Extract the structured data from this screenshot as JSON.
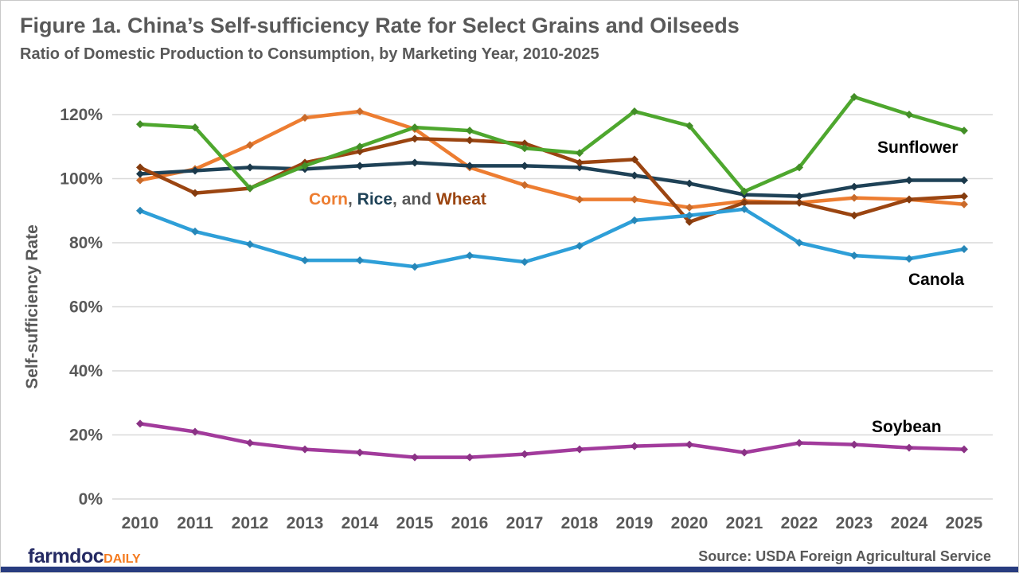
{
  "header": {
    "title": "Figure 1a. China’s Self-sufficiency Rate for Select Grains and Oilseeds",
    "subtitle": "Ratio of Domestic Production to Consumption, by Marketing Year, 2010-2025"
  },
  "chart_data": {
    "type": "line",
    "x": [
      2010,
      2011,
      2012,
      2013,
      2014,
      2015,
      2016,
      2017,
      2018,
      2019,
      2020,
      2021,
      2022,
      2023,
      2024,
      2025
    ],
    "series": [
      {
        "name": "Corn",
        "color": "#ED7D31",
        "values": [
          99.5,
          103,
          110.5,
          119,
          121,
          115.5,
          103.5,
          98,
          93.5,
          93.5,
          91,
          93,
          92.5,
          94,
          93.5,
          92
        ]
      },
      {
        "name": "Rice",
        "color": "#1F4257",
        "values": [
          101.5,
          102.5,
          103.5,
          103,
          104,
          105,
          104,
          104,
          103.5,
          101,
          98.5,
          95,
          94.5,
          97.5,
          99.5,
          99.5
        ]
      },
      {
        "name": "Wheat",
        "color": "#9B4511",
        "values": [
          103.5,
          95.5,
          97,
          105,
          108.5,
          112.5,
          112,
          111,
          105,
          106,
          86.5,
          92.5,
          92.5,
          88.5,
          93.5,
          94.5
        ]
      },
      {
        "name": "Canola",
        "color": "#2E9FD8",
        "values": [
          90,
          83.5,
          79.5,
          74.5,
          74.5,
          72.5,
          76,
          74,
          79,
          87,
          88.5,
          90.5,
          80,
          76,
          75,
          78
        ]
      },
      {
        "name": "Sunflower",
        "color": "#4EA72E",
        "values": [
          117,
          116,
          97,
          104,
          110,
          116,
          115,
          109.5,
          108,
          121,
          116.5,
          96,
          103.5,
          125.5,
          120,
          115
        ]
      },
      {
        "name": "Soybean",
        "color": "#A23B9C",
        "values": [
          23.5,
          21,
          17.5,
          15.5,
          14.5,
          13,
          13,
          14,
          15.5,
          16.5,
          17,
          14.5,
          17.5,
          17,
          16,
          15.5
        ]
      }
    ],
    "ylabel": "Self-sufficiency Rate",
    "xlabel": "",
    "ylim": [
      0,
      130
    ],
    "yticks": [
      0,
      20,
      40,
      60,
      80,
      100,
      120
    ],
    "ytick_suffix": "%",
    "grid": "horizontal-only",
    "gridline_color": "#d9d9d9",
    "tick_label_color": "#595959",
    "legend_position": "inline-annotations"
  },
  "annotations": {
    "grains_label_segments": [
      {
        "text": "Corn",
        "color": "#ED7D31"
      },
      {
        "text": ", ",
        "color": "#595959"
      },
      {
        "text": "Rice",
        "color": "#1F4257"
      },
      {
        "text": ", ",
        "color": "#595959"
      },
      {
        "text": "and ",
        "color": "#595959"
      },
      {
        "text": "Wheat",
        "color": "#9B4511"
      }
    ],
    "sunflower_label": "Sunflower",
    "canola_label": "Canola",
    "soybean_label": "Soybean"
  },
  "footer": {
    "brand_main": "farmdoc",
    "brand_sub": "DAILY",
    "source": "Source: USDA Foreign Agricultural Service"
  }
}
